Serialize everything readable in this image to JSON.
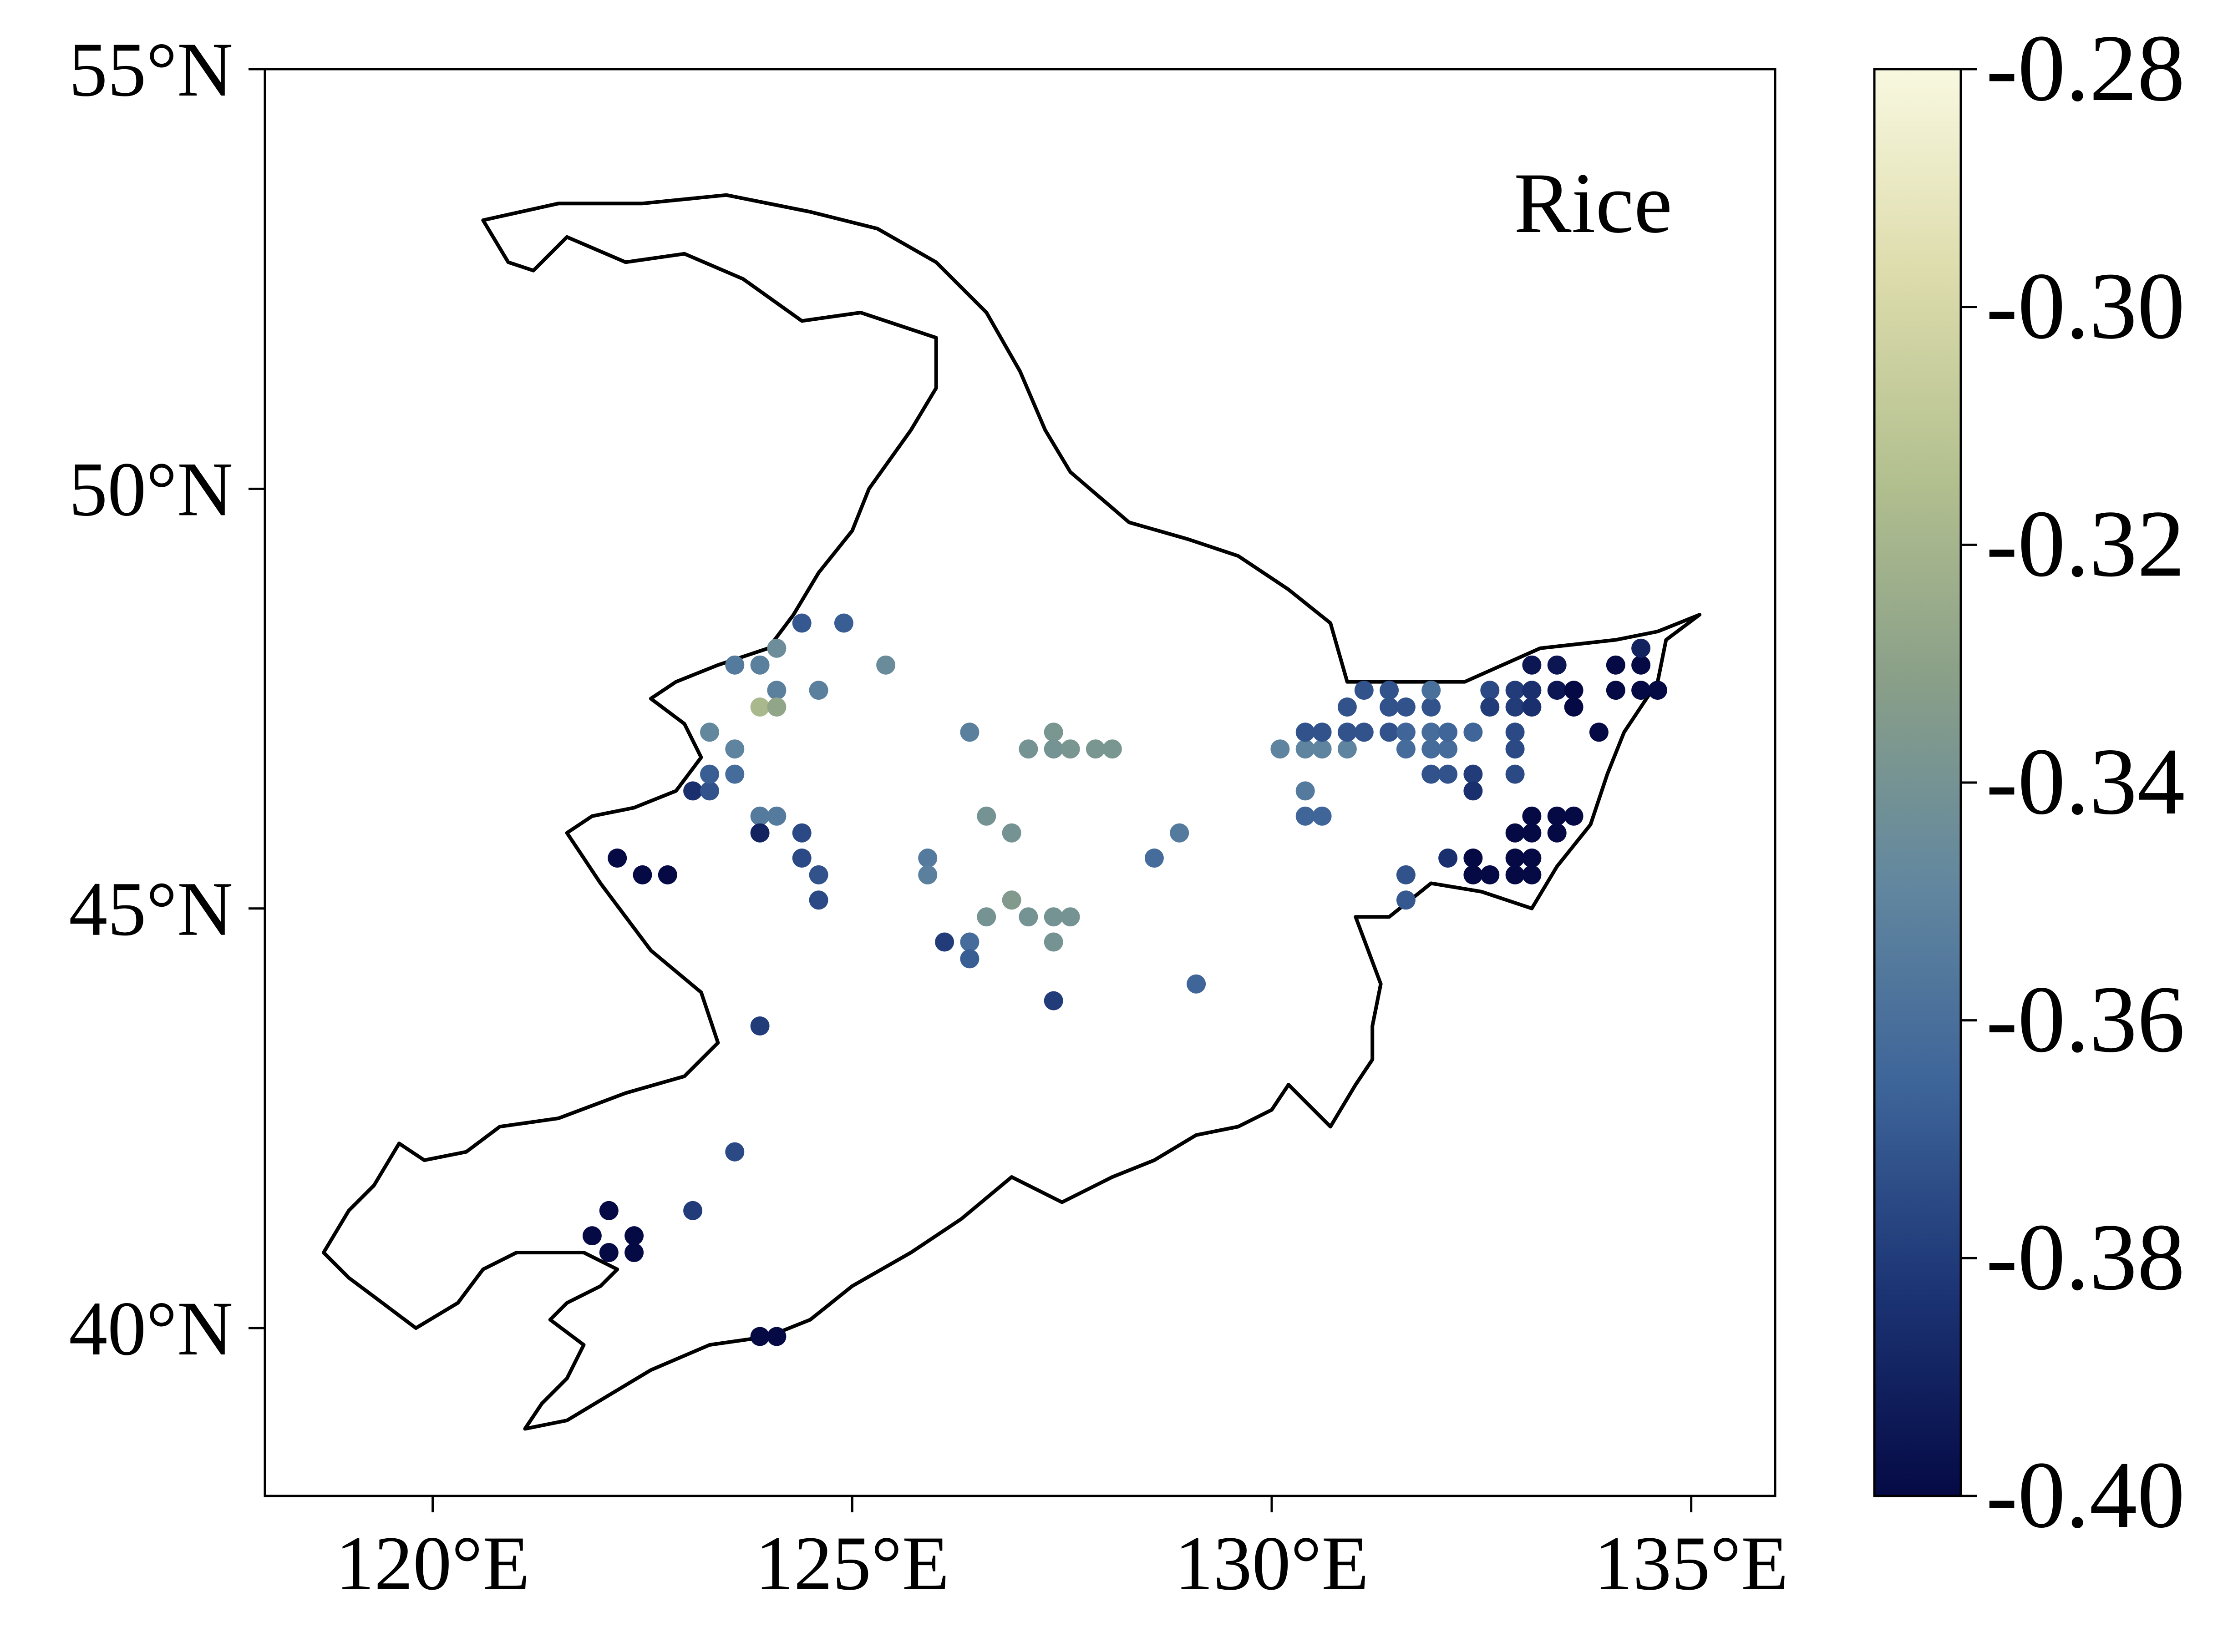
{
  "chart_data": {
    "type": "scatter",
    "title": "Rice",
    "xlabel": "",
    "ylabel": "",
    "xlim": [
      118,
      136
    ],
    "ylim": [
      38,
      55
    ],
    "x_ticks": [
      {
        "value": 120,
        "label": "120°E"
      },
      {
        "value": 125,
        "label": "125°E"
      },
      {
        "value": 130,
        "label": "130°E"
      },
      {
        "value": 135,
        "label": "135°E"
      }
    ],
    "y_ticks": [
      {
        "value": 40,
        "label": "40°N"
      },
      {
        "value": 45,
        "label": "45°N"
      },
      {
        "value": 50,
        "label": "50°N"
      },
      {
        "value": 55,
        "label": "55°N"
      }
    ],
    "grid": false,
    "colorbar": {
      "min": -0.4,
      "max": -0.28,
      "ticks": [
        {
          "value": -0.28,
          "label": "-0.28"
        },
        {
          "value": -0.3,
          "label": "-0.30"
        },
        {
          "value": -0.32,
          "label": "-0.32"
        },
        {
          "value": -0.34,
          "label": "-0.34"
        },
        {
          "value": -0.36,
          "label": "-0.36"
        },
        {
          "value": -0.38,
          "label": "-0.38"
        },
        {
          "value": -0.4,
          "label": "-0.40"
        }
      ],
      "colormap": [
        "#050a45",
        "#1c3474",
        "#3d6499",
        "#62879f",
        "#899f88",
        "#b3c08f",
        "#dddcac",
        "#f8f8e0"
      ]
    },
    "boundary": [
      [
        120.6,
        53.2
      ],
      [
        121.5,
        53.4
      ],
      [
        122.5,
        53.4
      ],
      [
        123.5,
        53.5
      ],
      [
        124.5,
        53.3
      ],
      [
        125.3,
        53.1
      ],
      [
        126.0,
        52.7
      ],
      [
        126.6,
        52.1
      ],
      [
        127.0,
        51.4
      ],
      [
        127.3,
        50.7
      ],
      [
        127.6,
        50.2
      ],
      [
        128.3,
        49.6
      ],
      [
        129.0,
        49.4
      ],
      [
        129.6,
        49.2
      ],
      [
        130.2,
        48.8
      ],
      [
        130.7,
        48.4
      ],
      [
        130.9,
        47.7
      ],
      [
        131.5,
        47.7
      ],
      [
        132.3,
        47.7
      ],
      [
        133.2,
        48.1
      ],
      [
        134.1,
        48.2
      ],
      [
        134.6,
        48.3
      ],
      [
        135.1,
        48.5
      ],
      [
        134.7,
        48.2
      ],
      [
        134.6,
        47.7
      ],
      [
        134.2,
        47.1
      ],
      [
        134.0,
        46.6
      ],
      [
        133.8,
        46.0
      ],
      [
        133.4,
        45.5
      ],
      [
        133.1,
        45.0
      ],
      [
        132.5,
        45.2
      ],
      [
        131.9,
        45.3
      ],
      [
        131.4,
        44.9
      ],
      [
        131.0,
        44.9
      ],
      [
        131.3,
        44.1
      ],
      [
        131.2,
        43.6
      ],
      [
        131.2,
        43.2
      ],
      [
        131.0,
        42.9
      ],
      [
        130.7,
        42.4
      ],
      [
        130.2,
        42.9
      ],
      [
        130.0,
        42.6
      ],
      [
        129.6,
        42.4
      ],
      [
        129.1,
        42.3
      ],
      [
        128.6,
        42.0
      ],
      [
        128.1,
        41.8
      ],
      [
        127.5,
        41.5
      ],
      [
        126.9,
        41.8
      ],
      [
        126.3,
        41.3
      ],
      [
        125.7,
        40.9
      ],
      [
        125.0,
        40.5
      ],
      [
        124.5,
        40.1
      ],
      [
        124.0,
        39.9
      ],
      [
        123.3,
        39.8
      ],
      [
        122.6,
        39.5
      ],
      [
        122.1,
        39.2
      ],
      [
        121.6,
        38.9
      ],
      [
        121.1,
        38.8
      ],
      [
        121.3,
        39.1
      ],
      [
        121.6,
        39.4
      ],
      [
        121.8,
        39.8
      ],
      [
        121.4,
        40.1
      ],
      [
        121.6,
        40.3
      ],
      [
        122.0,
        40.5
      ],
      [
        122.2,
        40.7
      ],
      [
        121.8,
        40.9
      ],
      [
        121.0,
        40.9
      ],
      [
        120.6,
        40.7
      ],
      [
        120.3,
        40.3
      ],
      [
        119.8,
        40.0
      ],
      [
        119.4,
        40.3
      ],
      [
        119.0,
        40.6
      ],
      [
        118.7,
        40.9
      ],
      [
        119.0,
        41.4
      ],
      [
        119.3,
        41.7
      ],
      [
        119.6,
        42.2
      ],
      [
        119.9,
        42.0
      ],
      [
        120.4,
        42.1
      ],
      [
        120.8,
        42.4
      ],
      [
        121.5,
        42.5
      ],
      [
        122.3,
        42.8
      ],
      [
        123.0,
        43.0
      ],
      [
        123.4,
        43.4
      ],
      [
        123.2,
        44.0
      ],
      [
        122.6,
        44.5
      ],
      [
        122.3,
        44.9
      ],
      [
        122.0,
        45.3
      ],
      [
        121.8,
        45.6
      ],
      [
        121.6,
        45.9
      ],
      [
        121.9,
        46.1
      ],
      [
        122.4,
        46.2
      ],
      [
        122.9,
        46.4
      ],
      [
        123.2,
        46.8
      ],
      [
        123.0,
        47.2
      ],
      [
        122.6,
        47.5
      ],
      [
        122.9,
        47.7
      ],
      [
        123.4,
        47.9
      ],
      [
        124.0,
        48.1
      ],
      [
        124.3,
        48.5
      ],
      [
        124.6,
        49.0
      ],
      [
        125.0,
        49.5
      ],
      [
        125.2,
        50.0
      ],
      [
        125.7,
        50.7
      ],
      [
        126.0,
        51.2
      ],
      [
        126.0,
        51.8
      ],
      [
        125.1,
        52.1
      ],
      [
        124.4,
        52.0
      ],
      [
        123.7,
        52.5
      ],
      [
        123.0,
        52.8
      ],
      [
        122.3,
        52.7
      ],
      [
        121.6,
        53.0
      ],
      [
        121.2,
        52.6
      ],
      [
        120.9,
        52.7
      ],
      [
        120.6,
        53.2
      ]
    ],
    "points": [
      {
        "x": 122.2,
        "y": 45.6,
        "v": -0.4
      },
      {
        "x": 122.5,
        "y": 45.4,
        "v": -0.4
      },
      {
        "x": 122.8,
        "y": 45.4,
        "v": -0.4
      },
      {
        "x": 123.1,
        "y": 46.4,
        "v": -0.385
      },
      {
        "x": 123.3,
        "y": 46.4,
        "v": -0.372
      },
      {
        "x": 123.3,
        "y": 46.6,
        "v": -0.368
      },
      {
        "x": 123.6,
        "y": 46.6,
        "v": -0.362
      },
      {
        "x": 123.3,
        "y": 47.1,
        "v": -0.348
      },
      {
        "x": 123.6,
        "y": 46.9,
        "v": -0.35
      },
      {
        "x": 123.6,
        "y": 47.9,
        "v": -0.355
      },
      {
        "x": 123.9,
        "y": 47.9,
        "v": -0.352
      },
      {
        "x": 124.1,
        "y": 48.1,
        "v": -0.344
      },
      {
        "x": 124.1,
        "y": 47.6,
        "v": -0.352
      },
      {
        "x": 123.9,
        "y": 47.4,
        "v": -0.318
      },
      {
        "x": 124.1,
        "y": 47.4,
        "v": -0.328
      },
      {
        "x": 124.4,
        "y": 48.4,
        "v": -0.37
      },
      {
        "x": 124.9,
        "y": 48.4,
        "v": -0.368
      },
      {
        "x": 124.6,
        "y": 47.6,
        "v": -0.352
      },
      {
        "x": 125.4,
        "y": 47.9,
        "v": -0.345
      },
      {
        "x": 123.9,
        "y": 46.1,
        "v": -0.355
      },
      {
        "x": 124.1,
        "y": 46.1,
        "v": -0.355
      },
      {
        "x": 123.9,
        "y": 45.9,
        "v": -0.39
      },
      {
        "x": 124.4,
        "y": 45.9,
        "v": -0.375
      },
      {
        "x": 124.4,
        "y": 45.6,
        "v": -0.375
      },
      {
        "x": 124.6,
        "y": 45.4,
        "v": -0.372
      },
      {
        "x": 124.6,
        "y": 45.1,
        "v": -0.375
      },
      {
        "x": 125.9,
        "y": 45.6,
        "v": -0.355
      },
      {
        "x": 125.9,
        "y": 45.4,
        "v": -0.352
      },
      {
        "x": 126.4,
        "y": 47.1,
        "v": -0.352
      },
      {
        "x": 126.6,
        "y": 46.1,
        "v": -0.34
      },
      {
        "x": 126.9,
        "y": 45.9,
        "v": -0.34
      },
      {
        "x": 126.9,
        "y": 45.1,
        "v": -0.335
      },
      {
        "x": 126.6,
        "y": 44.9,
        "v": -0.34
      },
      {
        "x": 126.1,
        "y": 44.6,
        "v": -0.38
      },
      {
        "x": 126.4,
        "y": 44.6,
        "v": -0.362
      },
      {
        "x": 126.4,
        "y": 44.4,
        "v": -0.368
      },
      {
        "x": 127.1,
        "y": 46.9,
        "v": -0.34
      },
      {
        "x": 127.4,
        "y": 47.1,
        "v": -0.338
      },
      {
        "x": 127.4,
        "y": 46.9,
        "v": -0.34
      },
      {
        "x": 127.6,
        "y": 46.9,
        "v": -0.338
      },
      {
        "x": 127.9,
        "y": 46.9,
        "v": -0.338
      },
      {
        "x": 128.1,
        "y": 46.9,
        "v": -0.338
      },
      {
        "x": 127.1,
        "y": 44.9,
        "v": -0.34
      },
      {
        "x": 127.4,
        "y": 44.9,
        "v": -0.34
      },
      {
        "x": 127.6,
        "y": 44.9,
        "v": -0.34
      },
      {
        "x": 127.4,
        "y": 44.6,
        "v": -0.34
      },
      {
        "x": 127.4,
        "y": 43.9,
        "v": -0.38
      },
      {
        "x": 128.6,
        "y": 45.6,
        "v": -0.362
      },
      {
        "x": 128.9,
        "y": 45.9,
        "v": -0.355
      },
      {
        "x": 129.1,
        "y": 44.1,
        "v": -0.365
      },
      {
        "x": 123.9,
        "y": 43.6,
        "v": -0.38
      },
      {
        "x": 123.6,
        "y": 42.1,
        "v": -0.375
      },
      {
        "x": 123.1,
        "y": 41.4,
        "v": -0.38
      },
      {
        "x": 121.9,
        "y": 41.1,
        "v": -0.4
      },
      {
        "x": 122.1,
        "y": 41.4,
        "v": -0.4
      },
      {
        "x": 122.4,
        "y": 41.1,
        "v": -0.4
      },
      {
        "x": 122.1,
        "y": 40.9,
        "v": -0.4
      },
      {
        "x": 122.4,
        "y": 40.9,
        "v": -0.4
      },
      {
        "x": 123.9,
        "y": 39.9,
        "v": -0.4
      },
      {
        "x": 124.1,
        "y": 39.9,
        "v": -0.4
      },
      {
        "x": 130.1,
        "y": 46.9,
        "v": -0.35
      },
      {
        "x": 130.4,
        "y": 46.9,
        "v": -0.35
      },
      {
        "x": 130.6,
        "y": 46.9,
        "v": -0.35
      },
      {
        "x": 130.9,
        "y": 46.9,
        "v": -0.35
      },
      {
        "x": 130.4,
        "y": 47.1,
        "v": -0.372
      },
      {
        "x": 130.6,
        "y": 47.1,
        "v": -0.372
      },
      {
        "x": 130.9,
        "y": 47.1,
        "v": -0.372
      },
      {
        "x": 130.9,
        "y": 47.4,
        "v": -0.372
      },
      {
        "x": 131.1,
        "y": 47.1,
        "v": -0.372
      },
      {
        "x": 131.1,
        "y": 47.6,
        "v": -0.372
      },
      {
        "x": 131.4,
        "y": 47.6,
        "v": -0.372
      },
      {
        "x": 131.4,
        "y": 47.4,
        "v": -0.372
      },
      {
        "x": 131.4,
        "y": 47.1,
        "v": -0.372
      },
      {
        "x": 131.6,
        "y": 47.1,
        "v": -0.365
      },
      {
        "x": 131.6,
        "y": 47.4,
        "v": -0.372
      },
      {
        "x": 131.9,
        "y": 47.4,
        "v": -0.372
      },
      {
        "x": 131.9,
        "y": 47.6,
        "v": -0.36
      },
      {
        "x": 130.4,
        "y": 46.4,
        "v": -0.355
      },
      {
        "x": 130.4,
        "y": 46.1,
        "v": -0.365
      },
      {
        "x": 130.6,
        "y": 46.1,
        "v": -0.365
      },
      {
        "x": 131.6,
        "y": 46.9,
        "v": -0.362
      },
      {
        "x": 131.9,
        "y": 46.9,
        "v": -0.362
      },
      {
        "x": 132.1,
        "y": 46.9,
        "v": -0.362
      },
      {
        "x": 131.9,
        "y": 47.1,
        "v": -0.362
      },
      {
        "x": 132.1,
        "y": 47.1,
        "v": -0.365
      },
      {
        "x": 132.4,
        "y": 47.1,
        "v": -0.365
      },
      {
        "x": 131.9,
        "y": 46.6,
        "v": -0.372
      },
      {
        "x": 132.1,
        "y": 46.6,
        "v": -0.372
      },
      {
        "x": 132.4,
        "y": 46.6,
        "v": -0.38
      },
      {
        "x": 132.4,
        "y": 46.4,
        "v": -0.385
      },
      {
        "x": 131.6,
        "y": 45.4,
        "v": -0.372
      },
      {
        "x": 131.6,
        "y": 45.1,
        "v": -0.37
      },
      {
        "x": 132.1,
        "y": 45.6,
        "v": -0.385
      },
      {
        "x": 132.4,
        "y": 45.6,
        "v": -0.4
      },
      {
        "x": 132.4,
        "y": 45.4,
        "v": -0.4
      },
      {
        "x": 132.6,
        "y": 45.4,
        "v": -0.4
      },
      {
        "x": 132.9,
        "y": 45.4,
        "v": -0.4
      },
      {
        "x": 133.1,
        "y": 45.4,
        "v": -0.4
      },
      {
        "x": 132.9,
        "y": 45.6,
        "v": -0.4
      },
      {
        "x": 133.1,
        "y": 45.6,
        "v": -0.4
      },
      {
        "x": 132.9,
        "y": 45.9,
        "v": -0.4
      },
      {
        "x": 133.1,
        "y": 45.9,
        "v": -0.4
      },
      {
        "x": 133.4,
        "y": 45.9,
        "v": -0.4
      },
      {
        "x": 133.1,
        "y": 46.1,
        "v": -0.4
      },
      {
        "x": 133.4,
        "y": 46.1,
        "v": -0.4
      },
      {
        "x": 133.6,
        "y": 46.1,
        "v": -0.4
      },
      {
        "x": 132.6,
        "y": 47.6,
        "v": -0.375
      },
      {
        "x": 132.9,
        "y": 47.6,
        "v": -0.38
      },
      {
        "x": 133.1,
        "y": 47.6,
        "v": -0.385
      },
      {
        "x": 133.4,
        "y": 47.6,
        "v": -0.395
      },
      {
        "x": 133.6,
        "y": 47.6,
        "v": -0.4
      },
      {
        "x": 133.1,
        "y": 47.9,
        "v": -0.395
      },
      {
        "x": 133.4,
        "y": 47.9,
        "v": -0.395
      },
      {
        "x": 132.6,
        "y": 47.4,
        "v": -0.38
      },
      {
        "x": 132.9,
        "y": 47.4,
        "v": -0.38
      },
      {
        "x": 133.1,
        "y": 47.4,
        "v": -0.385
      },
      {
        "x": 133.6,
        "y": 47.4,
        "v": -0.4
      },
      {
        "x": 133.9,
        "y": 47.1,
        "v": -0.4
      },
      {
        "x": 132.9,
        "y": 47.1,
        "v": -0.375
      },
      {
        "x": 132.9,
        "y": 46.9,
        "v": -0.375
      },
      {
        "x": 132.9,
        "y": 46.6,
        "v": -0.375
      },
      {
        "x": 134.1,
        "y": 47.9,
        "v": -0.4
      },
      {
        "x": 134.4,
        "y": 47.9,
        "v": -0.4
      },
      {
        "x": 134.4,
        "y": 48.1,
        "v": -0.39
      },
      {
        "x": 134.1,
        "y": 47.6,
        "v": -0.4
      },
      {
        "x": 134.4,
        "y": 47.6,
        "v": -0.4
      },
      {
        "x": 134.6,
        "y": 47.6,
        "v": -0.4
      }
    ]
  }
}
